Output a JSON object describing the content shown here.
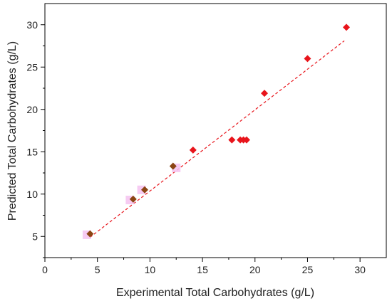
{
  "chart_data": {
    "type": "scatter",
    "title": "",
    "xlabel": "Experimental Total Carbohydrates (g/L)",
    "ylabel": "Predicted Total Carbohydrates (g/L)",
    "xlim": [
      0,
      32.5
    ],
    "ylim": [
      2.5,
      32.5
    ],
    "xticks": [
      0,
      5,
      10,
      15,
      20,
      25,
      30
    ],
    "yticks": [
      5,
      10,
      15,
      20,
      25,
      30
    ],
    "grid": false,
    "legend": "none",
    "series": [
      {
        "marker": "diamond",
        "color": "#e8141b",
        "points": [
          {
            "x": 14.1,
            "y": 15.2
          },
          {
            "x": 17.8,
            "y": 16.4
          },
          {
            "x": 18.6,
            "y": 16.4
          },
          {
            "x": 18.9,
            "y": 16.4
          },
          {
            "x": 19.2,
            "y": 16.4
          },
          {
            "x": 20.9,
            "y": 21.9
          },
          {
            "x": 25.0,
            "y": 26.0
          },
          {
            "x": 28.7,
            "y": 29.7
          }
        ]
      },
      {
        "marker": "diamond",
        "color": "#8b4513",
        "points": [
          {
            "x": 4.3,
            "y": 5.3
          },
          {
            "x": 8.4,
            "y": 9.4
          },
          {
            "x": 9.5,
            "y": 10.5
          },
          {
            "x": 12.2,
            "y": 13.3
          }
        ]
      },
      {
        "marker": "square",
        "color": "#f4c2f0",
        "points": [
          {
            "x": 4.0,
            "y": 5.2
          },
          {
            "x": 8.1,
            "y": 9.3
          },
          {
            "x": 9.2,
            "y": 10.5
          },
          {
            "x": 12.5,
            "y": 13.1
          }
        ]
      }
    ],
    "trendline": {
      "style": "dashed",
      "color": "#e8141b",
      "from": {
        "x": 4.3,
        "y": 4.9
      },
      "to": {
        "x": 28.5,
        "y": 28.1
      }
    }
  }
}
